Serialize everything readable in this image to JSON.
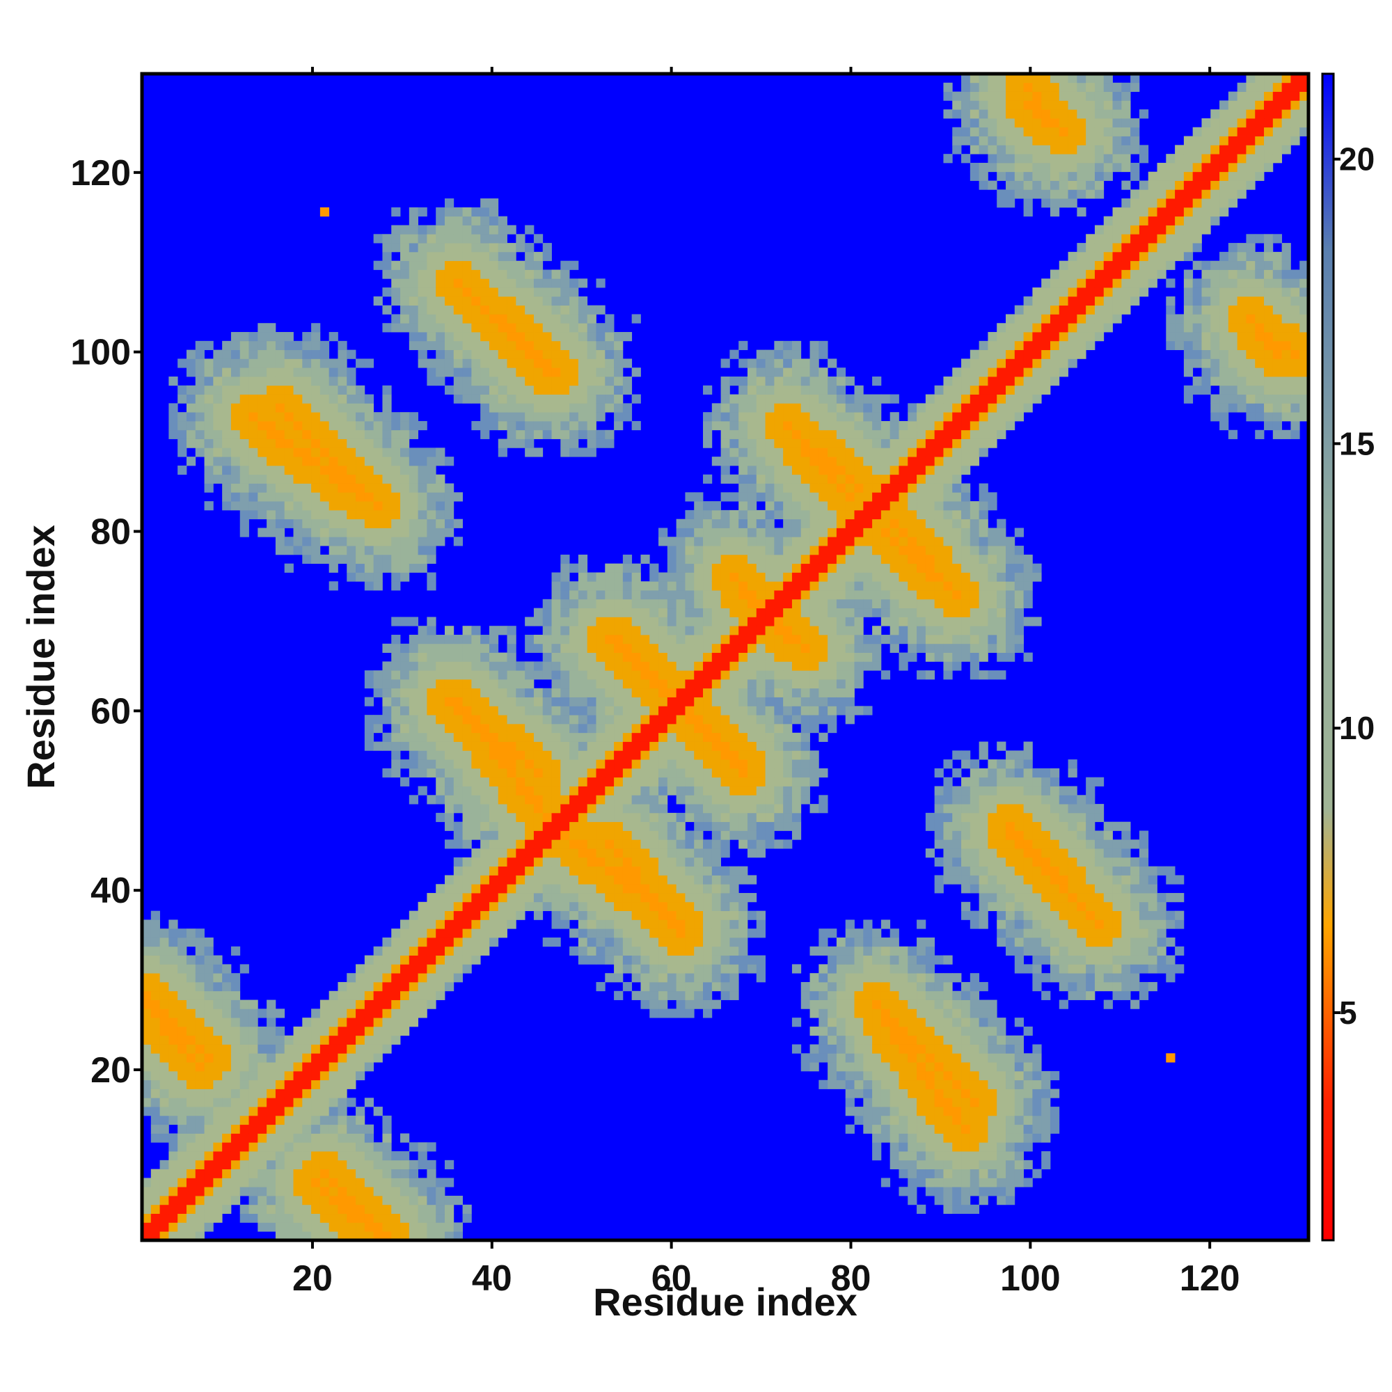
{
  "chart_data": {
    "type": "heatmap",
    "title": "",
    "xlabel": "Residue index",
    "ylabel": "Residue index",
    "xlim": [
      1,
      131
    ],
    "ylim": [
      1,
      131
    ],
    "x_ticks": [
      "20",
      "40",
      "60",
      "80",
      "100",
      "120"
    ],
    "y_ticks": [
      "20",
      "40",
      "60",
      "80",
      "100",
      "120"
    ],
    "x_tick_values": [
      20,
      40,
      60,
      80,
      100,
      120
    ],
    "y_tick_values": [
      20,
      40,
      60,
      80,
      100,
      120
    ],
    "colorbar": {
      "range": [
        1,
        21.5
      ],
      "ticks": [
        "5",
        "10",
        "15",
        "20"
      ],
      "tick_values": [
        5,
        10,
        15,
        20
      ],
      "colors": [
        "#ff0000",
        "#ff8c00",
        "#a0b496",
        "#5a7fb0",
        "#0000ff"
      ]
    },
    "n_residues": 131,
    "diagonal_value": 1.5,
    "background_value": 21.5,
    "contact_bands": [
      {
        "i": [
          1,
          8
        ],
        "j": [
          28,
          21
        ],
        "value": 3.5
      },
      {
        "i": [
          13,
          25
        ],
        "j": [
          93,
          84
        ],
        "value": 3.5
      },
      {
        "i": [
          36,
          46
        ],
        "j": [
          108,
          98
        ],
        "value": 3.5
      },
      {
        "i": [
          35,
          45
        ],
        "j": [
          61,
          53
        ],
        "value": 3.5
      },
      {
        "i": [
          48,
          61
        ],
        "j": [
          46,
          36
        ],
        "value": 3.5
      },
      {
        "i": [
          53,
          60
        ],
        "j": [
          68,
          62
        ],
        "value": 3.5
      },
      {
        "i": [
          61,
          68
        ],
        "j": [
          60,
          54
        ],
        "value": 3.5
      },
      {
        "i": [
          73,
          80
        ],
        "j": [
          92,
          84
        ],
        "value": 3.5
      },
      {
        "i": [
          85,
          91
        ],
        "j": [
          81,
          74
        ],
        "value": 3.5
      },
      {
        "i": [
          98,
          107
        ],
        "j": [
          47,
          37
        ],
        "value": 3.5
      },
      {
        "i": [
          83,
          94
        ],
        "j": [
          27,
          16
        ],
        "value": 3.5
      },
      {
        "i": [
          20,
          27
        ],
        "j": [
          7,
          1
        ],
        "value": 3.5
      },
      {
        "i": [
          125,
          128
        ],
        "j": [
          104,
          100
        ],
        "value": 3.5
      },
      {
        "i": [
          100,
          102
        ],
        "j": [
          130,
          127
        ],
        "value": 3.5
      },
      {
        "i": [
          67,
          73
        ],
        "j": [
          75,
          68
        ],
        "value": 3.5
      }
    ],
    "isolated_contacts": [
      {
        "i": 21,
        "j": 116,
        "value": 4.5
      },
      {
        "i": 116,
        "j": 21,
        "value": 4.5
      }
    ]
  }
}
